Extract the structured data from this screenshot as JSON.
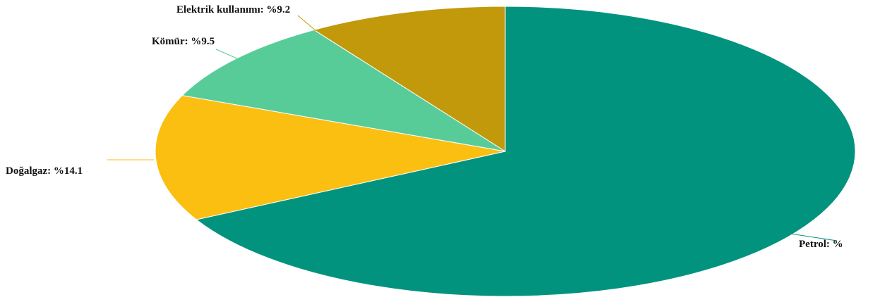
{
  "chart_data": {
    "type": "pie",
    "title": "",
    "slices": [
      {
        "name": "Petrol",
        "label": "Petrol: %",
        "value": 67.2,
        "color": "#02937e"
      },
      {
        "name": "Doğalgaz",
        "label": "Doğalgaz: %14.1",
        "value": 14.1,
        "color": "#fbbf12"
      },
      {
        "name": "Kömür",
        "label": "Kömür: %9.5",
        "value": 9.5,
        "color": "#58cc98"
      },
      {
        "name": "Elektrik kullanımı",
        "label": "Elektrik kullanımı: %9.2",
        "value": 9.2,
        "color": "#c2990b"
      }
    ]
  }
}
